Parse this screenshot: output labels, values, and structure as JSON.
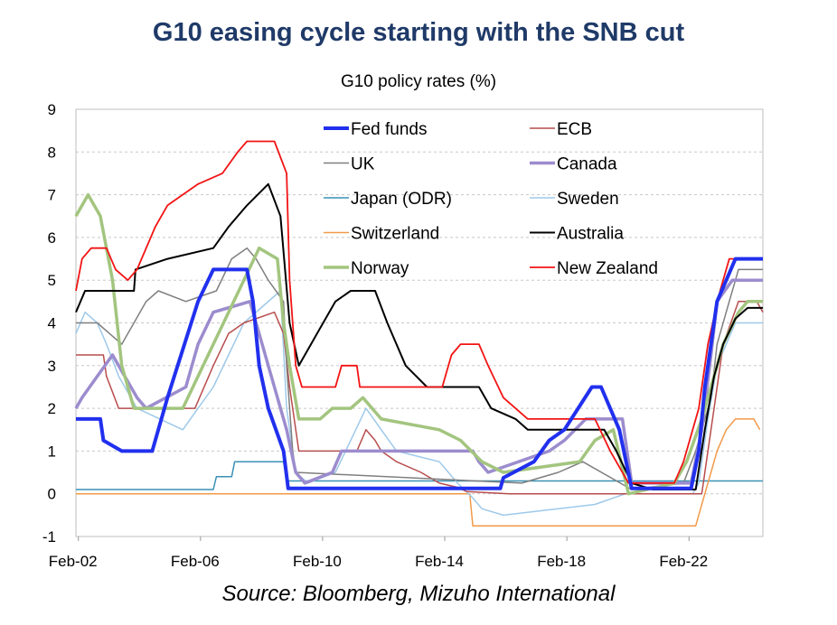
{
  "title": "G10 easing cycle starting with the SNB cut",
  "subtitle": "G10 policy rates (%)",
  "source": "Source: Bloomberg, Mizuho International",
  "chart_data": {
    "type": "line",
    "title": "G10 easing cycle starting with the SNB cut",
    "subtitle": "G10 policy rates (%)",
    "xlabel": "",
    "ylabel": "",
    "xlim": [
      2002.0,
      2024.5
    ],
    "ylim": [
      -1,
      9
    ],
    "yticks": [
      -1,
      0,
      1,
      2,
      3,
      4,
      5,
      6,
      7,
      8,
      9
    ],
    "xticks": [
      {
        "x": 2002.08,
        "label": "Feb-02"
      },
      {
        "x": 2006.08,
        "label": "Feb-06"
      },
      {
        "x": 2010.08,
        "label": "Feb-10"
      },
      {
        "x": 2014.08,
        "label": "Feb-14"
      },
      {
        "x": 2018.08,
        "label": "Feb-18"
      },
      {
        "x": 2022.08,
        "label": "Feb-22"
      }
    ],
    "grid": "horizontal-dashed",
    "legend": "top-center, two columns",
    "series": [
      {
        "name": "Fed funds",
        "color": "#2130ee",
        "width": 4,
        "points": [
          [
            2002.0,
            1.75
          ],
          [
            2002.8,
            1.75
          ],
          [
            2002.9,
            1.25
          ],
          [
            2003.5,
            1.0
          ],
          [
            2004.5,
            1.0
          ],
          [
            2004.6,
            1.25
          ],
          [
            2005.0,
            2.25
          ],
          [
            2006.0,
            4.5
          ],
          [
            2006.5,
            5.25
          ],
          [
            2007.6,
            5.25
          ],
          [
            2007.8,
            4.5
          ],
          [
            2008.0,
            3.0
          ],
          [
            2008.3,
            2.0
          ],
          [
            2008.8,
            1.0
          ],
          [
            2008.95,
            0.125
          ],
          [
            2015.9,
            0.125
          ],
          [
            2016.0,
            0.375
          ],
          [
            2017.0,
            0.75
          ],
          [
            2017.5,
            1.25
          ],
          [
            2018.0,
            1.5
          ],
          [
            2018.9,
            2.5
          ],
          [
            2019.2,
            2.5
          ],
          [
            2019.5,
            2.0
          ],
          [
            2019.8,
            1.5
          ],
          [
            2020.2,
            0.125
          ],
          [
            2022.15,
            0.125
          ],
          [
            2022.4,
            1.0
          ],
          [
            2022.6,
            2.5
          ],
          [
            2022.8,
            3.5
          ],
          [
            2023.0,
            4.5
          ],
          [
            2023.3,
            5.0
          ],
          [
            2023.6,
            5.5
          ],
          [
            2024.5,
            5.5
          ]
        ]
      },
      {
        "name": "ECB",
        "color": "#b84d4d",
        "width": 1.5,
        "points": [
          [
            2002.0,
            3.25
          ],
          [
            2002.9,
            3.25
          ],
          [
            2003.0,
            2.75
          ],
          [
            2003.4,
            2.0
          ],
          [
            2005.9,
            2.0
          ],
          [
            2006.5,
            3.0
          ],
          [
            2007.0,
            3.75
          ],
          [
            2007.5,
            4.0
          ],
          [
            2008.5,
            4.25
          ],
          [
            2008.8,
            3.75
          ],
          [
            2009.0,
            2.5
          ],
          [
            2009.3,
            1.0
          ],
          [
            2011.2,
            1.0
          ],
          [
            2011.5,
            1.5
          ],
          [
            2011.8,
            1.25
          ],
          [
            2012.0,
            1.0
          ],
          [
            2012.5,
            0.75
          ],
          [
            2013.3,
            0.5
          ],
          [
            2013.9,
            0.25
          ],
          [
            2014.5,
            0.15
          ],
          [
            2014.8,
            0.05
          ],
          [
            2016.2,
            0.0
          ],
          [
            2022.5,
            0.0
          ],
          [
            2022.6,
            0.5
          ],
          [
            2022.9,
            2.0
          ],
          [
            2023.2,
            3.5
          ],
          [
            2023.7,
            4.5
          ],
          [
            2024.3,
            4.5
          ],
          [
            2024.5,
            4.25
          ]
        ]
      },
      {
        "name": "UK",
        "color": "#7f7f7f",
        "width": 1.5,
        "points": [
          [
            2002.0,
            4.0
          ],
          [
            2002.7,
            4.0
          ],
          [
            2003.1,
            3.75
          ],
          [
            2003.5,
            3.5
          ],
          [
            2003.9,
            4.0
          ],
          [
            2004.3,
            4.5
          ],
          [
            2004.7,
            4.75
          ],
          [
            2005.6,
            4.5
          ],
          [
            2006.6,
            4.75
          ],
          [
            2007.1,
            5.5
          ],
          [
            2007.6,
            5.75
          ],
          [
            2007.9,
            5.5
          ],
          [
            2008.3,
            5.0
          ],
          [
            2008.8,
            4.5
          ],
          [
            2008.9,
            3.0
          ],
          [
            2009.1,
            1.0
          ],
          [
            2009.2,
            0.5
          ],
          [
            2016.6,
            0.25
          ],
          [
            2017.8,
            0.5
          ],
          [
            2018.6,
            0.75
          ],
          [
            2020.2,
            0.1
          ],
          [
            2021.9,
            0.25
          ],
          [
            2022.3,
            1.0
          ],
          [
            2022.8,
            2.25
          ],
          [
            2023.0,
            3.5
          ],
          [
            2023.4,
            4.5
          ],
          [
            2023.7,
            5.25
          ],
          [
            2024.5,
            5.25
          ]
        ]
      },
      {
        "name": "Canada",
        "color": "#9c8cce",
        "width": 3.5,
        "points": [
          [
            2002.0,
            2.0
          ],
          [
            2002.2,
            2.25
          ],
          [
            2002.7,
            2.75
          ],
          [
            2003.2,
            3.25
          ],
          [
            2003.6,
            2.75
          ],
          [
            2004.0,
            2.25
          ],
          [
            2004.3,
            2.0
          ],
          [
            2005.6,
            2.5
          ],
          [
            2006.0,
            3.5
          ],
          [
            2006.5,
            4.25
          ],
          [
            2007.7,
            4.5
          ],
          [
            2007.9,
            4.0
          ],
          [
            2008.3,
            3.0
          ],
          [
            2008.9,
            1.5
          ],
          [
            2009.2,
            0.5
          ],
          [
            2009.5,
            0.25
          ],
          [
            2010.4,
            0.5
          ],
          [
            2010.7,
            1.0
          ],
          [
            2015.0,
            1.0
          ],
          [
            2015.2,
            0.75
          ],
          [
            2015.5,
            0.5
          ],
          [
            2017.5,
            1.0
          ],
          [
            2018.0,
            1.25
          ],
          [
            2018.7,
            1.75
          ],
          [
            2019.9,
            1.75
          ],
          [
            2020.2,
            0.25
          ],
          [
            2022.15,
            0.25
          ],
          [
            2022.5,
            1.5
          ],
          [
            2022.8,
            3.25
          ],
          [
            2023.0,
            4.5
          ],
          [
            2023.5,
            5.0
          ],
          [
            2024.5,
            5.0
          ]
        ]
      },
      {
        "name": "Japan (ODR)",
        "color": "#3a91b5",
        "width": 1.5,
        "points": [
          [
            2002.0,
            0.1
          ],
          [
            2006.5,
            0.1
          ],
          [
            2006.6,
            0.4
          ],
          [
            2007.1,
            0.4
          ],
          [
            2007.2,
            0.75
          ],
          [
            2008.8,
            0.75
          ],
          [
            2008.9,
            0.3
          ],
          [
            2023.5,
            0.3
          ],
          [
            2024.5,
            0.3
          ]
        ]
      },
      {
        "name": "Sweden",
        "color": "#9ec9ea",
        "width": 1.5,
        "points": [
          [
            2002.0,
            3.75
          ],
          [
            2002.3,
            4.25
          ],
          [
            2002.7,
            4.0
          ],
          [
            2003.0,
            3.5
          ],
          [
            2003.4,
            2.75
          ],
          [
            2004.0,
            2.0
          ],
          [
            2005.5,
            1.5
          ],
          [
            2006.0,
            2.0
          ],
          [
            2006.5,
            2.5
          ],
          [
            2007.0,
            3.25
          ],
          [
            2007.5,
            4.0
          ],
          [
            2008.7,
            4.75
          ],
          [
            2008.9,
            2.0
          ],
          [
            2009.2,
            0.5
          ],
          [
            2009.6,
            0.25
          ],
          [
            2010.5,
            0.5
          ],
          [
            2011.0,
            1.25
          ],
          [
            2011.5,
            2.0
          ],
          [
            2012.0,
            1.5
          ],
          [
            2012.5,
            1.0
          ],
          [
            2013.9,
            0.75
          ],
          [
            2014.5,
            0.25
          ],
          [
            2015.0,
            -0.1
          ],
          [
            2015.3,
            -0.35
          ],
          [
            2016.0,
            -0.5
          ],
          [
            2019.0,
            -0.25
          ],
          [
            2020.0,
            0.0
          ],
          [
            2022.2,
            0.0
          ],
          [
            2022.4,
            0.25
          ],
          [
            2022.7,
            1.75
          ],
          [
            2023.0,
            3.0
          ],
          [
            2023.6,
            4.0
          ],
          [
            2024.5,
            4.0
          ]
        ]
      },
      {
        "name": "Switzerland",
        "color": "#f29a4a",
        "width": 1.5,
        "points": [
          [
            2002.0,
            0.0
          ],
          [
            2014.9,
            0.0
          ],
          [
            2015.0,
            -0.75
          ],
          [
            2022.3,
            -0.75
          ],
          [
            2022.5,
            -0.25
          ],
          [
            2022.8,
            0.5
          ],
          [
            2023.0,
            1.0
          ],
          [
            2023.3,
            1.5
          ],
          [
            2023.6,
            1.75
          ],
          [
            2024.2,
            1.75
          ],
          [
            2024.4,
            1.5
          ]
        ]
      },
      {
        "name": "Australia",
        "color": "#000000",
        "width": 2,
        "points": [
          [
            2002.0,
            4.25
          ],
          [
            2002.3,
            4.75
          ],
          [
            2003.9,
            4.75
          ],
          [
            2003.95,
            5.25
          ],
          [
            2005.0,
            5.5
          ],
          [
            2006.5,
            5.75
          ],
          [
            2007.0,
            6.25
          ],
          [
            2007.6,
            6.75
          ],
          [
            2008.3,
            7.25
          ],
          [
            2008.7,
            6.5
          ],
          [
            2009.0,
            4.0
          ],
          [
            2009.3,
            3.0
          ],
          [
            2009.9,
            3.75
          ],
          [
            2010.5,
            4.5
          ],
          [
            2011.0,
            4.75
          ],
          [
            2011.8,
            4.75
          ],
          [
            2012.2,
            4.0
          ],
          [
            2012.8,
            3.0
          ],
          [
            2013.5,
            2.5
          ],
          [
            2015.2,
            2.5
          ],
          [
            2015.6,
            2.0
          ],
          [
            2016.4,
            1.75
          ],
          [
            2016.8,
            1.5
          ],
          [
            2019.3,
            1.5
          ],
          [
            2019.7,
            1.0
          ],
          [
            2020.2,
            0.25
          ],
          [
            2020.9,
            0.1
          ],
          [
            2022.3,
            0.1
          ],
          [
            2022.6,
            1.5
          ],
          [
            2022.9,
            2.75
          ],
          [
            2023.2,
            3.5
          ],
          [
            2023.6,
            4.1
          ],
          [
            2024.0,
            4.35
          ],
          [
            2024.5,
            4.35
          ]
        ]
      },
      {
        "name": "Norway",
        "color": "#a3c57f",
        "width": 3.5,
        "points": [
          [
            2002.0,
            6.5
          ],
          [
            2002.4,
            7.0
          ],
          [
            2002.8,
            6.5
          ],
          [
            2003.2,
            5.0
          ],
          [
            2003.5,
            3.0
          ],
          [
            2003.9,
            2.0
          ],
          [
            2005.5,
            2.0
          ],
          [
            2006.0,
            2.75
          ],
          [
            2006.5,
            3.5
          ],
          [
            2007.0,
            4.25
          ],
          [
            2007.5,
            5.0
          ],
          [
            2008.0,
            5.75
          ],
          [
            2008.6,
            5.5
          ],
          [
            2008.8,
            4.0
          ],
          [
            2009.0,
            3.0
          ],
          [
            2009.3,
            1.75
          ],
          [
            2010.0,
            1.75
          ],
          [
            2010.4,
            2.0
          ],
          [
            2011.0,
            2.0
          ],
          [
            2011.4,
            2.25
          ],
          [
            2012.0,
            1.75
          ],
          [
            2013.9,
            1.5
          ],
          [
            2014.6,
            1.25
          ],
          [
            2015.3,
            0.75
          ],
          [
            2016.0,
            0.5
          ],
          [
            2018.5,
            0.75
          ],
          [
            2019.0,
            1.25
          ],
          [
            2019.6,
            1.5
          ],
          [
            2020.1,
            0.0
          ],
          [
            2021.6,
            0.25
          ],
          [
            2022.0,
            0.75
          ],
          [
            2022.5,
            1.75
          ],
          [
            2022.9,
            2.75
          ],
          [
            2023.2,
            3.5
          ],
          [
            2023.7,
            4.25
          ],
          [
            2024.0,
            4.5
          ],
          [
            2024.5,
            4.5
          ]
        ]
      },
      {
        "name": "New Zealand",
        "color": "#f21414",
        "width": 1.8,
        "points": [
          [
            2002.0,
            4.75
          ],
          [
            2002.2,
            5.5
          ],
          [
            2002.5,
            5.75
          ],
          [
            2003.0,
            5.75
          ],
          [
            2003.3,
            5.25
          ],
          [
            2003.7,
            5.0
          ],
          [
            2004.0,
            5.25
          ],
          [
            2004.6,
            6.25
          ],
          [
            2005.0,
            6.75
          ],
          [
            2006.0,
            7.25
          ],
          [
            2006.8,
            7.5
          ],
          [
            2007.3,
            8.0
          ],
          [
            2007.6,
            8.25
          ],
          [
            2008.5,
            8.25
          ],
          [
            2008.9,
            7.5
          ],
          [
            2009.0,
            5.0
          ],
          [
            2009.2,
            3.0
          ],
          [
            2009.4,
            2.5
          ],
          [
            2010.5,
            2.5
          ],
          [
            2010.7,
            3.0
          ],
          [
            2011.2,
            3.0
          ],
          [
            2011.3,
            2.5
          ],
          [
            2014.0,
            2.5
          ],
          [
            2014.3,
            3.25
          ],
          [
            2014.6,
            3.5
          ],
          [
            2015.2,
            3.5
          ],
          [
            2015.5,
            3.0
          ],
          [
            2016.0,
            2.25
          ],
          [
            2016.8,
            1.75
          ],
          [
            2019.0,
            1.75
          ],
          [
            2019.5,
            1.0
          ],
          [
            2020.1,
            0.25
          ],
          [
            2021.6,
            0.25
          ],
          [
            2021.9,
            0.75
          ],
          [
            2022.4,
            2.0
          ],
          [
            2022.7,
            3.5
          ],
          [
            2023.1,
            4.75
          ],
          [
            2023.4,
            5.5
          ],
          [
            2024.5,
            5.5
          ]
        ]
      }
    ]
  }
}
